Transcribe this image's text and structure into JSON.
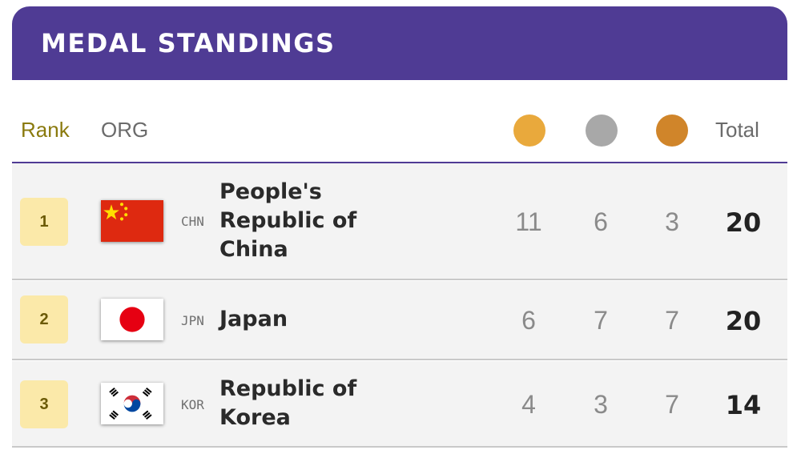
{
  "header": {
    "title": "MEDAL STANDINGS"
  },
  "columns": {
    "rank": "Rank",
    "org": "ORG",
    "total": "Total"
  },
  "medal_icons": {
    "gold": {
      "icon": "gold-medal-icon",
      "color": "#e9a93c"
    },
    "silver": {
      "icon": "silver-medal-icon",
      "color": "#a8a8a8"
    },
    "bronze": {
      "icon": "bronze-medal-icon",
      "color": "#d0852a"
    }
  },
  "colors": {
    "accent": "#4f3b94",
    "rank_badge": "#fbe9a9"
  },
  "rows": [
    {
      "rank": "1",
      "flag": "china-flag-icon",
      "code": "CHN",
      "country": "People's Republic of China",
      "gold": "11",
      "silver": "6",
      "bronze": "3",
      "total": "20"
    },
    {
      "rank": "2",
      "flag": "japan-flag-icon",
      "code": "JPN",
      "country": "Japan",
      "gold": "6",
      "silver": "7",
      "bronze": "7",
      "total": "20"
    },
    {
      "rank": "3",
      "flag": "korea-flag-icon",
      "code": "KOR",
      "country": "Republic of Korea",
      "gold": "4",
      "silver": "3",
      "bronze": "7",
      "total": "14"
    }
  ]
}
